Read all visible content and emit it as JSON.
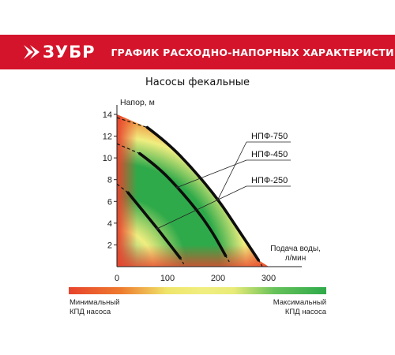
{
  "header": {
    "brand": "ЗУБР",
    "title": "ГРАФИК РАСХОДНО-НАПОРНЫХ ХАРАКТЕРИСТИК",
    "brand_color": "#d4142a"
  },
  "chart_data": {
    "type": "line",
    "title": "Насосы фекальные",
    "ylabel": "Напор, м",
    "xlabel_line1": "Подача воды,",
    "xlabel_line2": "л/мин",
    "xlim": [
      0,
      300
    ],
    "ylim": [
      0,
      14
    ],
    "xticks": [
      0,
      100,
      200,
      300
    ],
    "yticks": [
      2,
      4,
      6,
      8,
      10,
      12,
      14
    ],
    "grid": false,
    "series": [
      {
        "name": "НПФ-750",
        "dashed_x": [
          0,
          60
        ],
        "x": [
          60,
          100,
          150,
          200,
          240,
          280
        ],
        "y": [
          12.8,
          11.4,
          9.0,
          6.2,
          3.4,
          0.6
        ]
      },
      {
        "name": "НПФ-450",
        "dashed_x": [
          0,
          45
        ],
        "x": [
          45,
          80,
          120,
          160,
          190,
          215
        ],
        "y": [
          10.4,
          9.2,
          7.3,
          5.1,
          3.1,
          1.0
        ]
      },
      {
        "name": "НПФ-250",
        "dashed_x": [
          0,
          22
        ],
        "x": [
          22,
          50,
          80,
          105,
          125
        ],
        "y": [
          6.8,
          5.2,
          3.5,
          2.0,
          0.8
        ]
      }
    ],
    "legend": {
      "min_line1": "Минимальный",
      "min_line2": "КПД насоса",
      "max_line1": "Максимальный",
      "max_line2": "КПД насоса",
      "min_color": "#e8432d",
      "mid_color": "#f0ee80",
      "max_color": "#2faa4a"
    }
  }
}
